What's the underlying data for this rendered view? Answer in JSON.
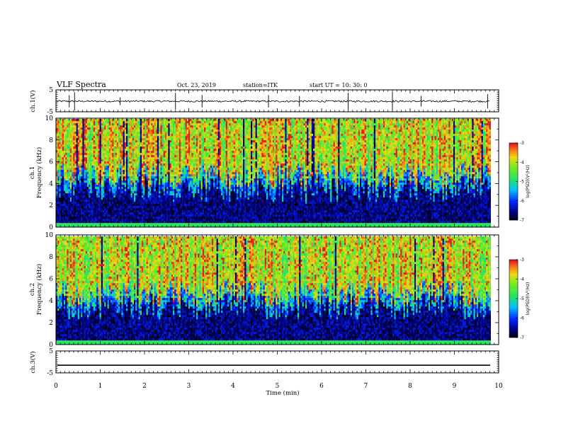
{
  "header": {
    "title": "VLF  Spectra",
    "date": "Oct. 23, 2019",
    "station": "station=ITK",
    "start": "start  UT  =   10: 30: 0"
  },
  "chart_data": [
    {
      "type": "line",
      "panel": "ch1_waveform",
      "ylabel": "ch.1(V)",
      "ylim": [
        -5,
        5
      ],
      "yticks": [
        "5",
        "-5"
      ],
      "xlim": [
        0,
        10
      ],
      "baseline": -0.2,
      "noise_amplitude": 0.4,
      "spikes_min": [
        0.3,
        0.42,
        1.45,
        2.7,
        3.3,
        4.8,
        5.5,
        6.6,
        7.6,
        8.25,
        9.75
      ]
    },
    {
      "type": "heatmap",
      "panel": "ch1_spectrogram",
      "ylabel_top": "ch.1",
      "ylabel": "Frequency  (kHz)",
      "ylim": [
        0,
        10
      ],
      "yticks": [
        "0",
        "2",
        "4",
        "6",
        "8",
        "10"
      ],
      "xlim": [
        0,
        9.83
      ],
      "colorbar": {
        "label": "log(PSD)(V²/Hz)",
        "range": [
          -7,
          -3
        ],
        "ticks": [
          "-3",
          "-4",
          "-5",
          "-6",
          "-7"
        ]
      },
      "dark_band_top_khz": 3.5,
      "green_band_khz": [
        6,
        10
      ]
    },
    {
      "type": "heatmap",
      "panel": "ch2_spectrogram",
      "ylabel_top": "ch.2",
      "ylabel": "Frequency  (kHz)",
      "ylim": [
        0,
        10
      ],
      "yticks": [
        "0",
        "2",
        "4",
        "6",
        "8",
        "10"
      ],
      "xlim": [
        0,
        9.83
      ],
      "colorbar": {
        "label": "log(PSD)(V²/Hz)",
        "range": [
          -7,
          -3
        ],
        "ticks": [
          "-3",
          "-4",
          "-5",
          "-6",
          "-7"
        ]
      },
      "dark_band_top_khz": 3.5,
      "green_band_khz": [
        6,
        10
      ]
    },
    {
      "type": "line",
      "panel": "ch3_waveform",
      "ylabel": "ch.3(V)",
      "ylim": [
        -5,
        5
      ],
      "yticks": [
        "5",
        "-5"
      ],
      "xlim": [
        0,
        10
      ],
      "baseline": -1.5
    }
  ],
  "xaxis": {
    "label": "Time  (min)",
    "ticks": [
      "0",
      "1",
      "2",
      "3",
      "4",
      "5",
      "6",
      "7",
      "8",
      "9",
      "10"
    ],
    "range": [
      0,
      10
    ]
  }
}
